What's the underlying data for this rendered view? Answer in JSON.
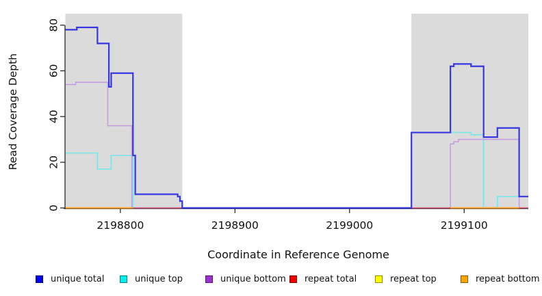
{
  "chart_data": {
    "type": "line",
    "subtype": "step-coverage",
    "title": "",
    "xlabel": "Coordinate in Reference Genome",
    "ylabel": "Read Coverage Depth",
    "xlim": [
      2198752,
      2199156
    ],
    "ylim": [
      0,
      80
    ],
    "x_ticks": [
      2198800,
      2198900,
      2199000,
      2199100
    ],
    "y_ticks": [
      0,
      20,
      40,
      60,
      80
    ],
    "grid": false,
    "legend_position": "bottom",
    "shaded_region_color": "#DBDBDB",
    "shaded_regions": [
      {
        "start": 2198752,
        "end": 2198854
      },
      {
        "start": 2199054,
        "end": 2199156
      }
    ],
    "draw_order": [
      "unique top",
      "unique bottom",
      "repeat total",
      "repeat top",
      "repeat bottom",
      "unique total"
    ],
    "series": [
      {
        "name": "unique total",
        "legend_color": "#0000EE",
        "line_color": "#3636E2",
        "line_width": 2.2,
        "segments": [
          [
            [
              2198752,
              78
            ],
            [
              2198762,
              79
            ],
            [
              2198780,
              72
            ],
            [
              2198790,
              53
            ],
            [
              2198792,
              59
            ],
            [
              2198811,
              23
            ],
            [
              2198813,
              6
            ],
            [
              2198850,
              5
            ],
            [
              2198852,
              3
            ],
            [
              2198854,
              0
            ],
            [
              2199054,
              33
            ],
            [
              2199088,
              62
            ],
            [
              2199091,
              63
            ],
            [
              2199106,
              62
            ],
            [
              2199117,
              31
            ],
            [
              2199129,
              35
            ],
            [
              2199148,
              5
            ],
            [
              2199156,
              5
            ]
          ]
        ]
      },
      {
        "name": "unique top",
        "legend_color": "#00EEEE",
        "line_color": "#7BE6EA",
        "line_width": 1.7,
        "segments": [
          [
            [
              2198752,
              24
            ],
            [
              2198780,
              17
            ],
            [
              2198792,
              23
            ],
            [
              2198811,
              0
            ],
            [
              2199054,
              33
            ],
            [
              2199106,
              32
            ],
            [
              2199117,
              0
            ],
            [
              2199129,
              5
            ],
            [
              2199156,
              5
            ]
          ]
        ]
      },
      {
        "name": "unique bottom",
        "legend_color": "#9A30D0",
        "line_color": "#C49ADF",
        "line_width": 1.5,
        "segments": [
          [
            [
              2198752,
              54
            ],
            [
              2198761,
              55
            ],
            [
              2198789,
              36
            ],
            [
              2198810,
              0
            ],
            [
              2199088,
              28
            ],
            [
              2199091,
              29
            ],
            [
              2199095,
              30
            ],
            [
              2199148,
              0
            ],
            [
              2199156,
              0
            ]
          ]
        ]
      },
      {
        "name": "repeat total",
        "legend_color": "#EE0000",
        "line_color": "#D9506E",
        "line_width": 1.5,
        "segments": [
          [
            [
              2198752,
              0
            ],
            [
              2198854,
              0
            ]
          ],
          [
            [
              2199054,
              0
            ],
            [
              2199156,
              0
            ]
          ]
        ]
      },
      {
        "name": "repeat top",
        "legend_color": "#FFFF00",
        "line_color": "#F5E400",
        "line_width": 1.5,
        "segments": [
          [
            [
              2198752,
              0
            ],
            [
              2198811,
              0
            ]
          ],
          [
            [
              2199088,
              0
            ],
            [
              2199148,
              0
            ]
          ]
        ]
      },
      {
        "name": "repeat bottom",
        "legend_color": "#FFA500",
        "line_color": "#FF9E1B",
        "line_width": 2.0,
        "segments": [
          [
            [
              2198752,
              0
            ],
            [
              2198811,
              0
            ]
          ],
          [
            [
              2199088,
              0
            ],
            [
              2199148,
              0
            ]
          ]
        ]
      }
    ],
    "legend": {
      "entries": [
        {
          "label": "unique total",
          "color": "#0000EE"
        },
        {
          "label": "unique top",
          "color": "#00EEEE"
        },
        {
          "label": "unique bottom",
          "color": "#9A30D0"
        },
        {
          "label": "repeat total",
          "color": "#EE0000"
        },
        {
          "label": "repeat top",
          "color": "#FFFF00"
        },
        {
          "label": "repeat bottom",
          "color": "#FFA500"
        }
      ]
    }
  }
}
